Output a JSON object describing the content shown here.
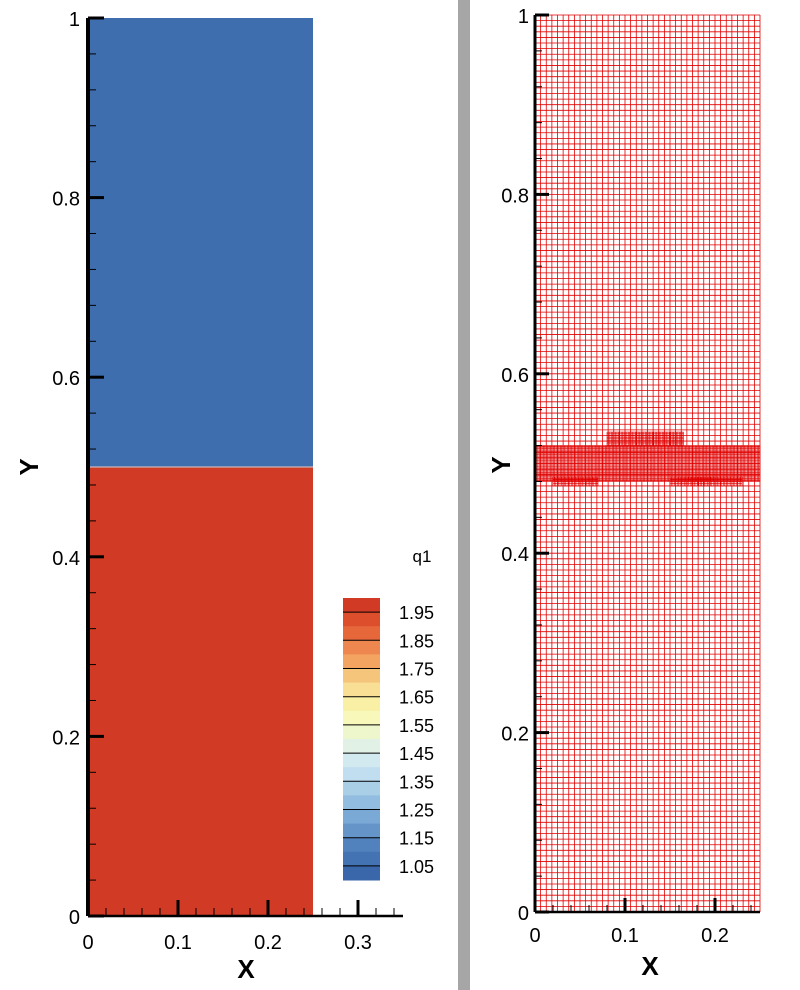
{
  "chart_data": [
    {
      "type": "heatmap",
      "title": "",
      "xlabel": "X",
      "ylabel": "Y",
      "xlim": [
        0,
        0.35
      ],
      "ylim": [
        0,
        1
      ],
      "x_ticks": [
        "0",
        "0.1",
        "0.2",
        "0.3"
      ],
      "y_ticks": [
        "0",
        "0.2",
        "0.4",
        "0.6",
        "0.8",
        "1"
      ],
      "domain_x": [
        0,
        0.25
      ],
      "regions": [
        {
          "y_range": [
            0,
            0.5
          ],
          "value": 2.0,
          "color": "#d13a25"
        },
        {
          "y_range": [
            0.5,
            1.0
          ],
          "value": 1.0,
          "color": "#3f6eaf"
        }
      ],
      "legend": {
        "title": "q1",
        "placement": "right",
        "labels": [
          "1.95",
          "1.85",
          "1.75",
          "1.65",
          "1.55",
          "1.45",
          "1.35",
          "1.25",
          "1.15",
          "1.05"
        ],
        "levels": [
          2.0,
          1.95,
          1.9,
          1.85,
          1.8,
          1.75,
          1.7,
          1.65,
          1.6,
          1.55,
          1.5,
          1.45,
          1.4,
          1.35,
          1.3,
          1.25,
          1.2,
          1.15,
          1.1,
          1.05
        ],
        "colors": [
          "#d13a25",
          "#dd4e2d",
          "#e6673a",
          "#ee8650",
          "#f3a460",
          "#f6c57c",
          "#f8df95",
          "#f9f0a5",
          "#f8f8ba",
          "#eef6cc",
          "#e2f1e6",
          "#d3e9f0",
          "#c0def0",
          "#a9cfe7",
          "#92bde0",
          "#7ba9d5",
          "#6594c9",
          "#5282bd",
          "#4373b3",
          "#3a66aa"
        ]
      }
    },
    {
      "type": "scatter",
      "title": "",
      "xlabel": "X",
      "ylabel": "Y",
      "xlim": [
        0,
        0.25
      ],
      "ylim": [
        0,
        1
      ],
      "x_ticks": [
        "0",
        "0.1",
        "0.2"
      ],
      "y_ticks": [
        "0",
        "0.2",
        "0.4",
        "0.6",
        "0.8",
        "1"
      ],
      "grid_color": "#e00000",
      "base_cells_x": 40,
      "base_cells_y": 160,
      "refined_bands": [
        {
          "x_range": [
            0,
            0.25
          ],
          "y_range": [
            0.48,
            0.52
          ],
          "cells_x": 160,
          "cells_y": 24
        },
        {
          "x_range": [
            0.08,
            0.165
          ],
          "y_range": [
            0.52,
            0.535
          ],
          "cells_x": 54,
          "cells_y": 8
        },
        {
          "x_range": [
            0.02,
            0.07
          ],
          "y_range": [
            0.475,
            0.485
          ],
          "cells_x": 32,
          "cells_y": 4
        },
        {
          "x_range": [
            0.15,
            0.23
          ],
          "y_range": [
            0.475,
            0.485
          ],
          "cells_x": 50,
          "cells_y": 4
        }
      ]
    }
  ]
}
